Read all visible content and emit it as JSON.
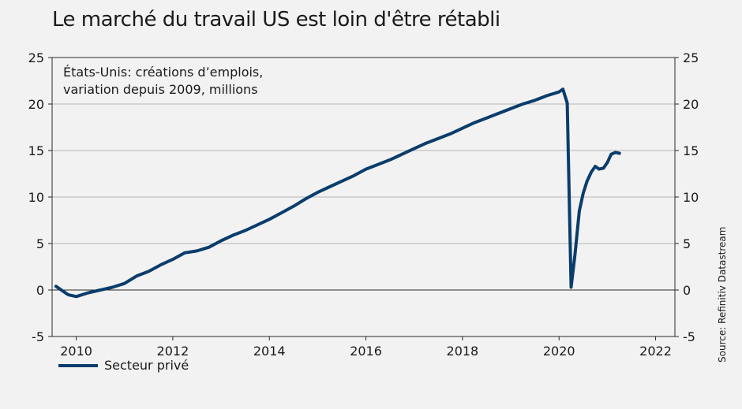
{
  "title": "Le marché du travail US est loin d'être rétabli",
  "source": "Source: Refinitiv Datastream",
  "chart_data": {
    "type": "line",
    "annotation": "États-Unis: créations d’emplois, variation depuis 2009, millions",
    "ylim": [
      -5,
      25
    ],
    "yticks": [
      -5,
      0,
      5,
      10,
      15,
      20,
      25
    ],
    "xlim": [
      2009.5,
      2022.4
    ],
    "xticks": [
      2010,
      2012,
      2014,
      2016,
      2018,
      2020,
      2022
    ],
    "grid": "horizontal",
    "legend_position": "bottom-left",
    "line_color": "#0a3d6b",
    "series": [
      {
        "name": "Secteur privé",
        "x": [
          2009.58,
          2009.83,
          2010.0,
          2010.25,
          2010.5,
          2010.75,
          2011.0,
          2011.25,
          2011.5,
          2011.75,
          2012.0,
          2012.25,
          2012.5,
          2012.75,
          2013.0,
          2013.25,
          2013.5,
          2013.75,
          2014.0,
          2014.25,
          2014.5,
          2014.75,
          2015.0,
          2015.25,
          2015.5,
          2015.75,
          2016.0,
          2016.25,
          2016.5,
          2016.75,
          2017.0,
          2017.25,
          2017.5,
          2017.75,
          2018.0,
          2018.25,
          2018.5,
          2018.75,
          2019.0,
          2019.25,
          2019.5,
          2019.75,
          2020.0,
          2020.08,
          2020.17,
          2020.25,
          2020.33,
          2020.42,
          2020.5,
          2020.58,
          2020.67,
          2020.75,
          2020.83,
          2020.92,
          2021.0,
          2021.08,
          2021.17,
          2021.25
        ],
        "values": [
          0.4,
          -0.5,
          -0.7,
          -0.3,
          0.0,
          0.3,
          0.7,
          1.5,
          2.0,
          2.7,
          3.3,
          4.0,
          4.2,
          4.6,
          5.3,
          5.9,
          6.4,
          7.0,
          7.6,
          8.3,
          9.0,
          9.8,
          10.5,
          11.1,
          11.7,
          12.3,
          13.0,
          13.5,
          14.0,
          14.6,
          15.2,
          15.8,
          16.3,
          16.8,
          17.4,
          18.0,
          18.5,
          19.0,
          19.5,
          20.0,
          20.4,
          20.9,
          21.3,
          21.6,
          20.1,
          0.3,
          3.8,
          8.5,
          10.4,
          11.7,
          12.7,
          13.3,
          13.0,
          13.1,
          13.7,
          14.6,
          14.8,
          14.7
        ]
      }
    ]
  }
}
